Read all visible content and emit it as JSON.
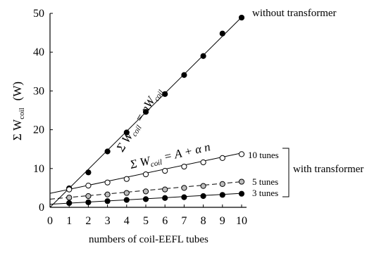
{
  "chart_data": {
    "type": "scatter",
    "xlabel": "numbers of coil-EEFL tubes",
    "ylabel": "Σ W",
    "ylabel_sub": "coil",
    "ylabel_unit": "(W)",
    "xlim": [
      0,
      10
    ],
    "ylim": [
      0,
      50
    ],
    "x_ticks": [
      "0",
      "1",
      "2",
      "3",
      "4",
      "5",
      "6",
      "7",
      "8",
      "9",
      "10"
    ],
    "y_ticks": [
      "0",
      "10",
      "20",
      "30",
      "40",
      "50"
    ],
    "grid": false,
    "series": [
      {
        "name": "without  transformer",
        "x": [
          1,
          2,
          3,
          4,
          5,
          6,
          7,
          8,
          9,
          10
        ],
        "y": [
          4.9,
          9.0,
          14.4,
          19.3,
          24.6,
          29.2,
          34.1,
          39.0,
          44.8,
          48.9
        ],
        "marker": "filled",
        "line": "solid",
        "fit": [
          0,
          0,
          10,
          49
        ]
      },
      {
        "name": "10 tunes",
        "x": [
          1,
          2,
          3,
          4,
          5,
          6,
          7,
          8,
          9,
          10
        ],
        "y": [
          4.6,
          5.6,
          6.4,
          7.3,
          8.5,
          9.4,
          10.5,
          11.6,
          12.7,
          13.7
        ],
        "marker": "open",
        "line": "solid",
        "fit": [
          0,
          3.6,
          10,
          14.0
        ]
      },
      {
        "name": "5 tunes",
        "x": [
          1,
          2,
          3,
          4,
          5,
          6,
          7,
          8,
          9,
          10
        ],
        "y": [
          2.5,
          2.9,
          3.3,
          3.7,
          4.1,
          4.6,
          5.0,
          5.5,
          6.0,
          6.6
        ],
        "marker": "gray",
        "line": "dashed",
        "fit": [
          0,
          2.1,
          10,
          6.6
        ]
      },
      {
        "name": "3 tunes",
        "x": [
          1,
          2,
          3,
          4,
          5,
          6,
          7,
          8,
          9,
          10
        ],
        "y": [
          1.1,
          1.3,
          1.6,
          1.9,
          2.1,
          2.4,
          2.6,
          2.9,
          3.2,
          3.5
        ],
        "marker": "filled",
        "line": "solid",
        "fit": [
          0,
          0.8,
          10,
          3.6
        ]
      }
    ],
    "annotations": {
      "eq1_main": "Σ W",
      "eq1_sub": "coil",
      "eq1_rest": " = nW",
      "eq1_sub2": "coil",
      "eq2_main": "Σ W",
      "eq2_sub": "coil",
      "eq2_rest": " = A + α n",
      "group_label": "with transformer"
    }
  }
}
